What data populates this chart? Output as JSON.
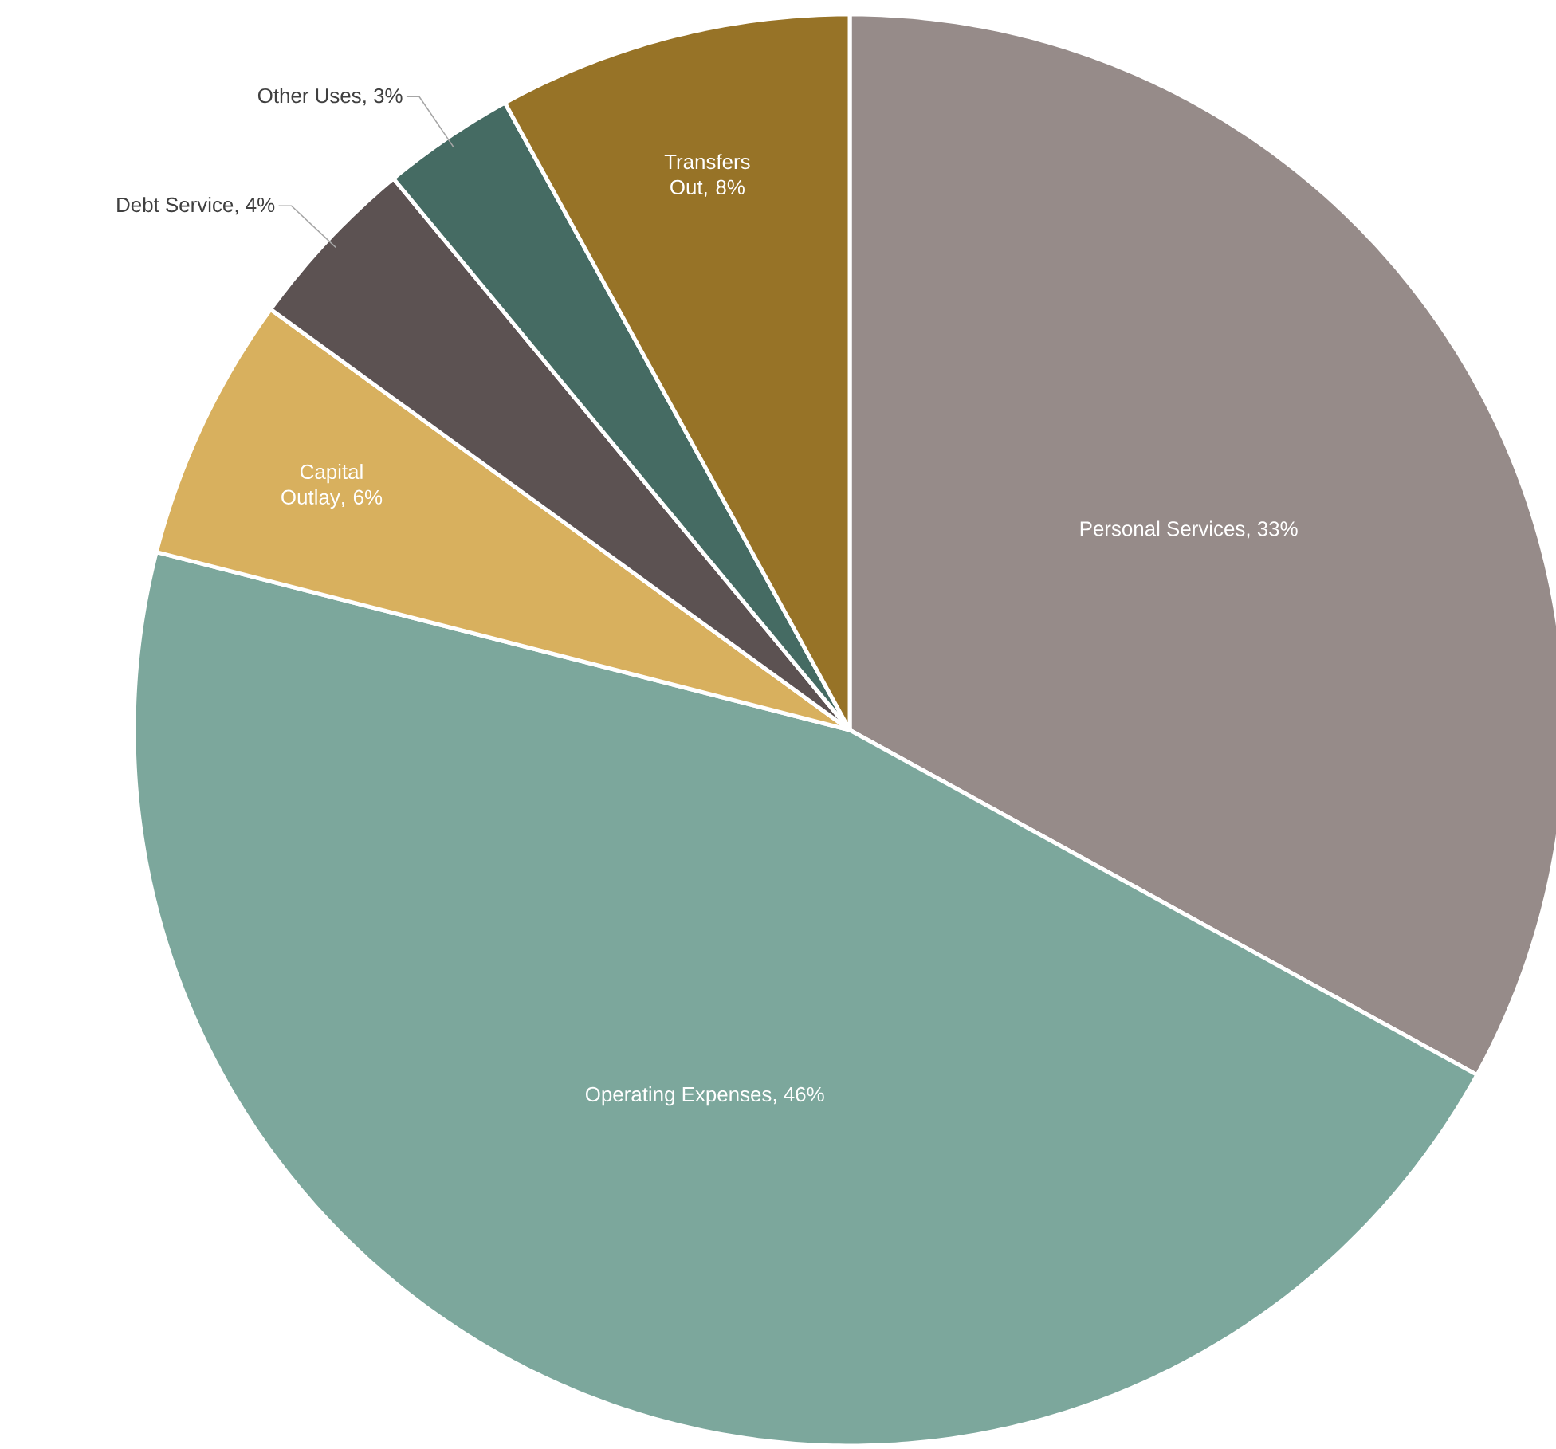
{
  "chart_data": {
    "type": "pie",
    "categories": [
      "Personal Services",
      "Operating Expenses",
      "Capital Outlay",
      "Debt Service",
      "Other Uses",
      "Transfers Out"
    ],
    "values": [
      33,
      46,
      6,
      4,
      3,
      8
    ],
    "value_labels": [
      ", 33%",
      ", 46%",
      ", 6%",
      ", 4%",
      ", 3%",
      ", 8%"
    ],
    "colors": [
      "#968b89",
      "#7ca79c",
      "#d8b05e",
      "#5c5252",
      "#456b63",
      "#977327"
    ],
    "legend": false
  }
}
